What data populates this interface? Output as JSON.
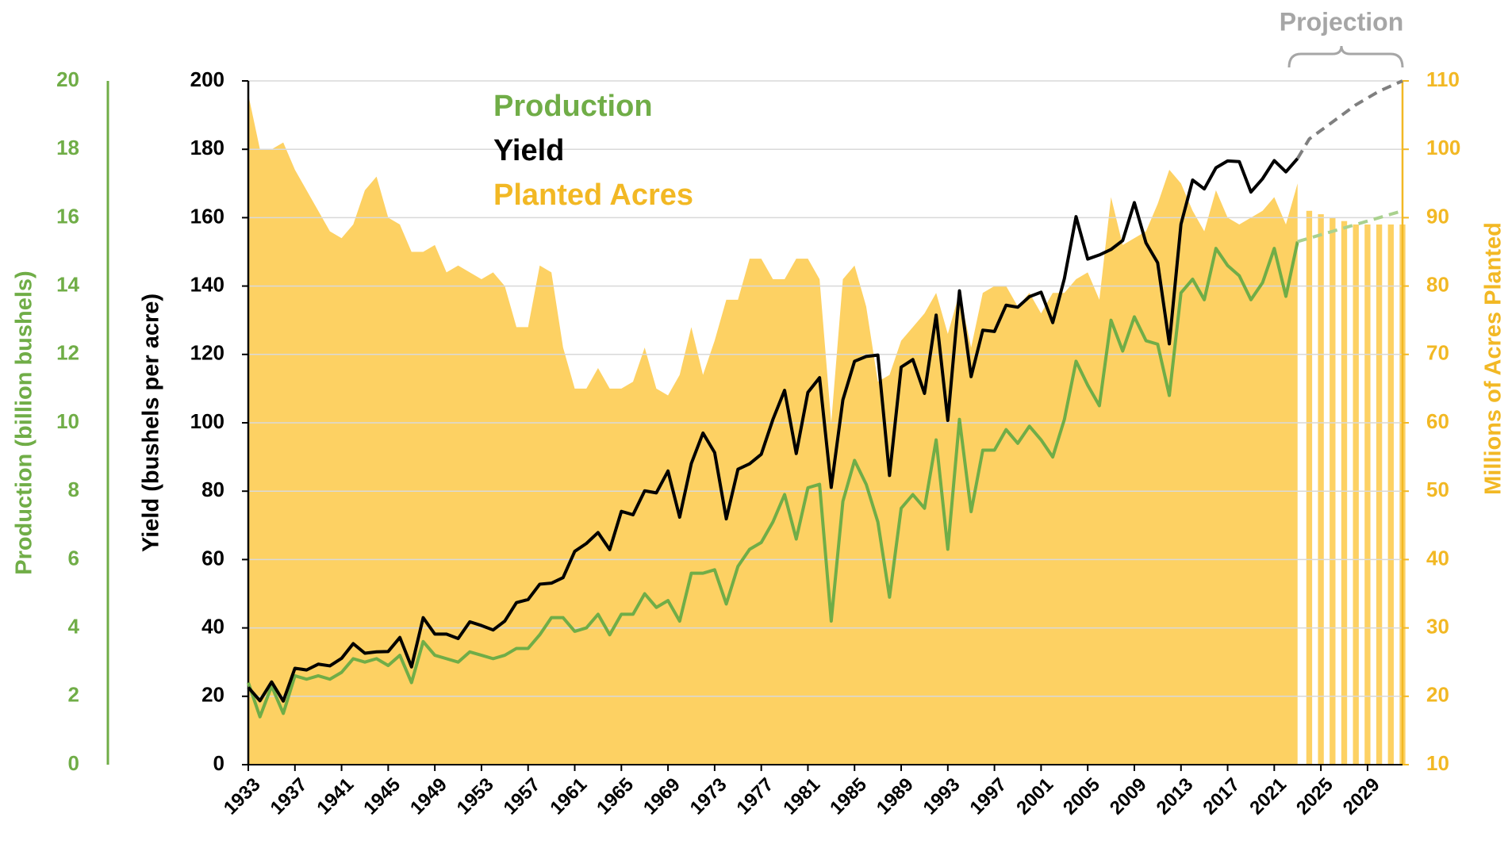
{
  "chart_data": {
    "type": "line",
    "title_annotation": "Projection",
    "projection_from": 2024,
    "y_label": "Yield (bushels per acre)",
    "y2_label": "Millions of Acres Planted",
    "y3_label": "Production (billion bushels)",
    "x": [
      1933,
      1934,
      1935,
      1936,
      1937,
      1938,
      1939,
      1940,
      1941,
      1942,
      1943,
      1944,
      1945,
      1946,
      1947,
      1948,
      1949,
      1950,
      1951,
      1952,
      1953,
      1954,
      1955,
      1956,
      1957,
      1958,
      1959,
      1960,
      1961,
      1962,
      1963,
      1964,
      1965,
      1966,
      1967,
      1968,
      1969,
      1970,
      1971,
      1972,
      1973,
      1974,
      1975,
      1976,
      1977,
      1978,
      1979,
      1980,
      1981,
      1982,
      1983,
      1984,
      1985,
      1986,
      1987,
      1988,
      1989,
      1990,
      1991,
      1992,
      1993,
      1994,
      1995,
      1996,
      1997,
      1998,
      1999,
      2000,
      2001,
      2002,
      2003,
      2004,
      2005,
      2006,
      2007,
      2008,
      2009,
      2010,
      2011,
      2012,
      2013,
      2014,
      2015,
      2016,
      2017,
      2018,
      2019,
      2020,
      2021,
      2022,
      2023,
      2024,
      2025,
      2026,
      2027,
      2028,
      2029,
      2030,
      2031,
      2032
    ],
    "xlim": [
      1933,
      2032
    ],
    "xticks": [
      1933,
      1937,
      1941,
      1945,
      1949,
      1953,
      1957,
      1961,
      1965,
      1969,
      1973,
      1977,
      1981,
      1985,
      1989,
      1993,
      1997,
      2001,
      2005,
      2009,
      2013,
      2017,
      2021,
      2025,
      2029
    ],
    "ylim": [
      0,
      200
    ],
    "yticks": [
      0,
      20,
      40,
      60,
      80,
      100,
      120,
      140,
      160,
      180,
      200
    ],
    "y2lim": [
      10,
      110
    ],
    "y2ticks": [
      10,
      20,
      30,
      40,
      50,
      60,
      70,
      80,
      90,
      100,
      110
    ],
    "y3lim": [
      0,
      20
    ],
    "y3ticks": [
      0,
      2,
      4,
      6,
      8,
      10,
      12,
      14,
      16,
      18,
      20
    ],
    "grid": true,
    "series": [
      {
        "name": "Production",
        "color": "#70ad47",
        "axis": "y3",
        "values": [
          2.4,
          1.4,
          2.3,
          1.5,
          2.6,
          2.5,
          2.6,
          2.5,
          2.7,
          3.1,
          3.0,
          3.1,
          2.9,
          3.2,
          2.4,
          3.6,
          3.2,
          3.1,
          3.0,
          3.3,
          3.2,
          3.1,
          3.2,
          3.4,
          3.4,
          3.8,
          4.3,
          4.3,
          3.9,
          4.0,
          4.4,
          3.8,
          4.4,
          4.4,
          5.0,
          4.6,
          4.8,
          4.2,
          5.6,
          5.6,
          5.7,
          4.7,
          5.8,
          6.3,
          6.5,
          7.1,
          7.9,
          6.6,
          8.1,
          8.2,
          4.2,
          7.7,
          8.9,
          8.2,
          7.1,
          4.9,
          7.5,
          7.9,
          7.5,
          9.5,
          6.3,
          10.1,
          7.4,
          9.2,
          9.2,
          9.8,
          9.4,
          9.9,
          9.5,
          9.0,
          10.1,
          11.8,
          11.1,
          10.5,
          13.0,
          12.1,
          13.1,
          12.4,
          12.3,
          10.8,
          13.8,
          14.2,
          13.6,
          15.1,
          14.6,
          14.3,
          13.6,
          14.1,
          15.1,
          13.7,
          15.3,
          15.4,
          15.5,
          15.6,
          15.7,
          15.8,
          15.9,
          16.0,
          16.1,
          16.2
        ]
      },
      {
        "name": "Yield",
        "color": "#000000",
        "axis": "y",
        "values": [
          22.6,
          18.7,
          24.2,
          18.6,
          28.2,
          27.7,
          29.4,
          28.9,
          31.1,
          35.4,
          32.6,
          33.0,
          33.1,
          37.2,
          28.6,
          43.0,
          38.2,
          38.2,
          36.9,
          41.8,
          40.7,
          39.4,
          42.0,
          47.4,
          48.3,
          52.8,
          53.1,
          54.7,
          62.4,
          64.7,
          67.9,
          62.9,
          74.1,
          73.1,
          80.1,
          79.5,
          85.9,
          72.4,
          88.1,
          97.0,
          91.3,
          71.9,
          86.4,
          88.0,
          90.8,
          101.0,
          109.5,
          91.0,
          108.9,
          113.2,
          81.1,
          106.7,
          118.0,
          119.4,
          119.8,
          84.6,
          116.3,
          118.5,
          108.6,
          131.5,
          100.7,
          138.6,
          113.5,
          127.1,
          126.7,
          134.4,
          133.8,
          136.9,
          138.2,
          129.3,
          142.2,
          160.3,
          147.9,
          149.1,
          150.7,
          153.3,
          164.4,
          152.6,
          146.8,
          123.1,
          158.1,
          171.0,
          168.4,
          174.6,
          176.6,
          176.4,
          167.5,
          171.4,
          176.7,
          173.4,
          177.3,
          183,
          185.5,
          188,
          190.5,
          193,
          195,
          197,
          198.5,
          200
        ]
      },
      {
        "name": "Planted Acres",
        "color": "#fdd163",
        "axis": "y2",
        "values": [
          108,
          100,
          100,
          101,
          97,
          94,
          91,
          88,
          87,
          89,
          94,
          96,
          90,
          89,
          85,
          85,
          86,
          82,
          83,
          82,
          81,
          82,
          80,
          74,
          74,
          83,
          82,
          71,
          65,
          65,
          68,
          65,
          65,
          66,
          71,
          65,
          64,
          67,
          74,
          67,
          72,
          78,
          78,
          84,
          84,
          81,
          81,
          84,
          84,
          81,
          60,
          81,
          83,
          77,
          66,
          67,
          72,
          74,
          76,
          79,
          73,
          79,
          71,
          79,
          80,
          80,
          77,
          79,
          76,
          79,
          79,
          81,
          82,
          78,
          93,
          86,
          87,
          88,
          92,
          97,
          95,
          91,
          88,
          94,
          90,
          89,
          90,
          91,
          93,
          89,
          95,
          91,
          90.5,
          90,
          89.5,
          89,
          89,
          89,
          89,
          89
        ]
      }
    ]
  }
}
